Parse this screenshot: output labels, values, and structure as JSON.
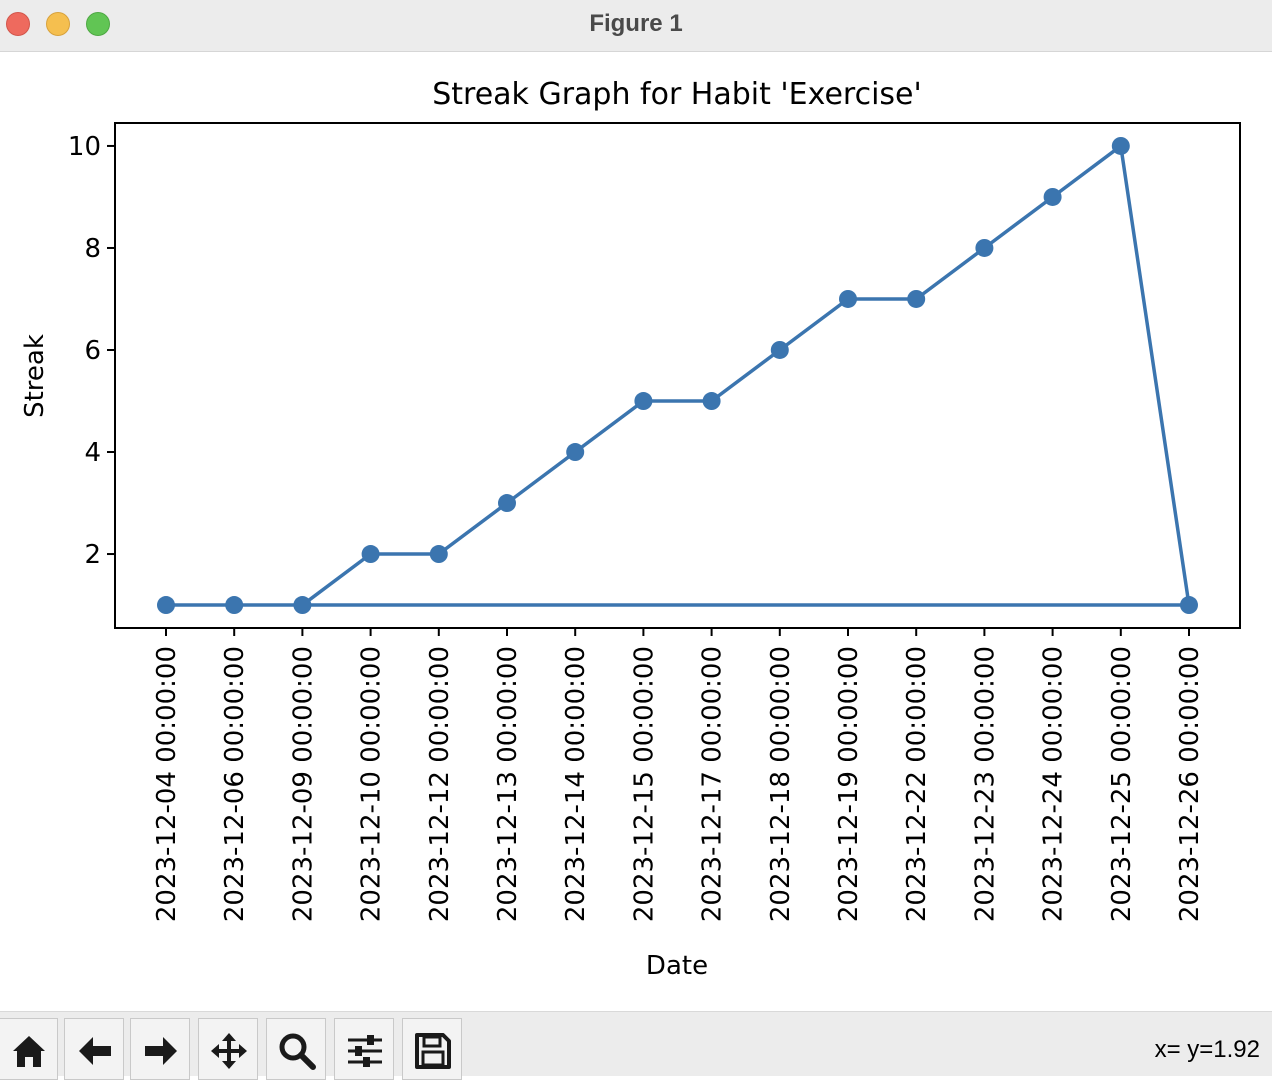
{
  "window": {
    "title": "Figure 1"
  },
  "toolbar": {
    "buttons": [
      {
        "name": "home-button",
        "icon": "home-icon"
      },
      {
        "name": "back-button",
        "icon": "arrow-left-icon"
      },
      {
        "name": "forward-button",
        "icon": "arrow-right-icon"
      },
      {
        "name": "pan-button",
        "icon": "move-icon"
      },
      {
        "name": "zoom-button",
        "icon": "zoom-icon"
      },
      {
        "name": "configure-subplots-button",
        "icon": "sliders-icon"
      },
      {
        "name": "save-button",
        "icon": "save-icon"
      }
    ],
    "coordinate_readout": "x= y=1.92"
  },
  "chart_data": {
    "type": "line",
    "title": "Streak Graph for Habit 'Exercise'",
    "xlabel": "Date",
    "ylabel": "Streak",
    "categories": [
      "2023-12-04 00:00:00",
      "2023-12-06 00:00:00",
      "2023-12-09 00:00:00",
      "2023-12-10 00:00:00",
      "2023-12-12 00:00:00",
      "2023-12-13 00:00:00",
      "2023-12-14 00:00:00",
      "2023-12-15 00:00:00",
      "2023-12-17 00:00:00",
      "2023-12-18 00:00:00",
      "2023-12-19 00:00:00",
      "2023-12-22 00:00:00",
      "2023-12-23 00:00:00",
      "2023-12-24 00:00:00",
      "2023-12-25 00:00:00",
      "2023-12-26 00:00:00"
    ],
    "points": [
      {
        "x": "2023-12-04 00:00:00",
        "y": 1
      },
      {
        "x": "2023-12-06 00:00:00",
        "y": 1
      },
      {
        "x": "2023-12-09 00:00:00",
        "y": 1
      },
      {
        "x": "2023-12-10 00:00:00",
        "y": 2
      },
      {
        "x": "2023-12-12 00:00:00",
        "y": 2
      },
      {
        "x": "2023-12-13 00:00:00",
        "y": 3
      },
      {
        "x": "2023-12-14 00:00:00",
        "y": 4
      },
      {
        "x": "2023-12-15 00:00:00",
        "y": 5
      },
      {
        "x": "2023-12-17 00:00:00",
        "y": 5
      },
      {
        "x": "2023-12-18 00:00:00",
        "y": 6
      },
      {
        "x": "2023-12-19 00:00:00",
        "y": 7
      },
      {
        "x": "2023-12-22 00:00:00",
        "y": 7
      },
      {
        "x": "2023-12-23 00:00:00",
        "y": 8
      },
      {
        "x": "2023-12-24 00:00:00",
        "y": 9
      },
      {
        "x": "2023-12-25 00:00:00",
        "y": 10
      },
      {
        "x": "2023-12-26 00:00:00",
        "y": 1
      },
      {
        "x": "2023-12-09 00:00:00",
        "y": 1
      }
    ],
    "yticks": [
      "2",
      "4",
      "6",
      "8",
      "10"
    ],
    "ylim": [
      0.55,
      10.45
    ],
    "grid": false,
    "color": "#3b75af"
  }
}
